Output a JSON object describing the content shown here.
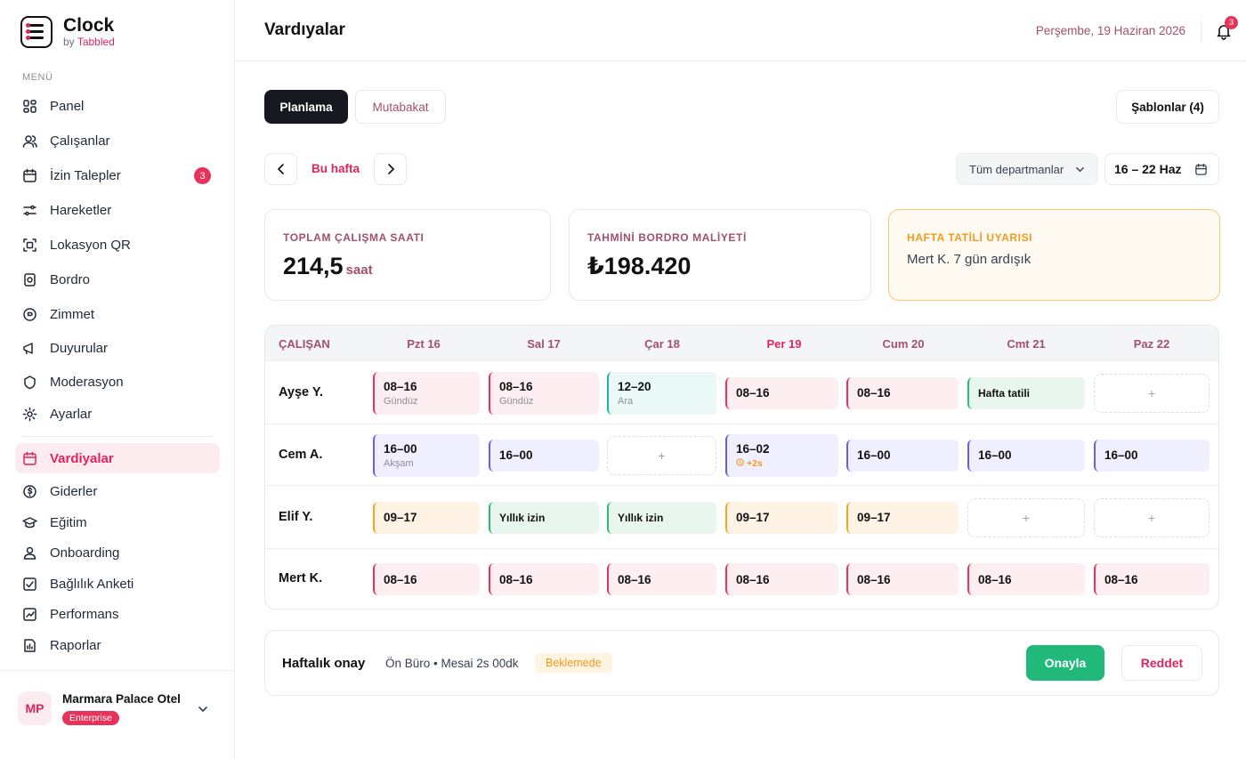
{
  "brand": {
    "name": "Clock",
    "by": "by",
    "maker": "Tabbled"
  },
  "sidebar": {
    "menu_label": "MENÜ",
    "items": [
      {
        "label": "Panel",
        "icon": "grid-icon"
      },
      {
        "label": "Çalışanlar",
        "icon": "users-icon"
      },
      {
        "label": "İzin Talepler",
        "icon": "calendar-icon",
        "badge": "3"
      },
      {
        "label": "Hareketler",
        "icon": "activity-icon"
      },
      {
        "label": "Lokasyon QR",
        "icon": "qr-icon"
      },
      {
        "label": "Bordro",
        "icon": "payroll-icon"
      },
      {
        "label": "Zimmet",
        "icon": "asset-icon"
      },
      {
        "label": "Duyurular",
        "icon": "megaphone-icon"
      },
      {
        "label": "Moderasyon",
        "icon": "moderation-icon"
      },
      {
        "label": "Ayarlar",
        "icon": "gear-icon"
      },
      {
        "label": "Vardiyalar",
        "icon": "calendar-icon",
        "active": true
      },
      {
        "label": "Giderler",
        "icon": "expense-icon"
      },
      {
        "label": "Eğitim",
        "icon": "graduation-icon"
      },
      {
        "label": "Onboarding",
        "icon": "user-icon"
      },
      {
        "label": "Bağlılık Anketi",
        "icon": "survey-icon"
      },
      {
        "label": "Performans",
        "icon": "chart-icon"
      },
      {
        "label": "Raporlar",
        "icon": "report-icon"
      }
    ],
    "org": {
      "initials": "MP",
      "name": "Marmara Palace Otel",
      "plan": "Enterprise"
    }
  },
  "header": {
    "title": "Vardıyalar",
    "date": "Perşembe, 19 Haziran 2026",
    "notifications": "3"
  },
  "tabs": {
    "planning": "Planlama",
    "reconciliation": "Mutabakat",
    "templates": "Şablonlar (4)"
  },
  "week": {
    "label": "Bu hafta",
    "department": "Tüm departmanlar",
    "range": "16 – 22 Haz"
  },
  "stats": {
    "hours_label": "TOPLAM ÇALIŞMA SAATI",
    "hours_value": "214,5",
    "hours_unit": "saat",
    "cost_label": "TAHMİNİ BORDRO MALİYETİ",
    "cost_value": "₺198.420",
    "warn_label": "HAFTA TATİLİ UYARISI",
    "warn_text": "Mert K. 7 gün ardışık"
  },
  "schedule": {
    "employee_header": "ÇALIŞAN",
    "days": [
      "Pzt 16",
      "Sal 17",
      "Çar 18",
      "Per 19",
      "Cum 20",
      "Cmt 21",
      "Paz 22"
    ],
    "rows": [
      {
        "name": "Ayşe Y.",
        "cells": [
          {
            "time": "08–16",
            "sub": "Gündüz",
            "color": "red"
          },
          {
            "time": "08–16",
            "sub": "Gündüz",
            "color": "red"
          },
          {
            "time": "12–20",
            "sub": "Ara",
            "color": "teal"
          },
          {
            "time": "08–16",
            "color": "red"
          },
          {
            "time": "08–16",
            "color": "red"
          },
          {
            "time": "Hafta tatili",
            "color": "green"
          },
          {
            "empty": "+"
          }
        ]
      },
      {
        "name": "Cem A.",
        "cells": [
          {
            "time": "16–00",
            "sub": "Akşam",
            "color": "purple"
          },
          {
            "time": "16–00",
            "color": "purple"
          },
          {
            "empty": "+"
          },
          {
            "time": "16–02",
            "overtime": "+2s",
            "color": "purple"
          },
          {
            "time": "16–00",
            "color": "purple"
          },
          {
            "time": "16–00",
            "color": "purple"
          },
          {
            "time": "16–00",
            "color": "purple"
          }
        ]
      },
      {
        "name": "Elif Y.",
        "cells": [
          {
            "time": "09–17",
            "color": "orange"
          },
          {
            "time": "Yıllık izin",
            "color": "green"
          },
          {
            "time": "Yıllık izin",
            "color": "green"
          },
          {
            "time": "09–17",
            "color": "orange"
          },
          {
            "time": "09–17",
            "color": "orange"
          },
          {
            "empty": "+"
          },
          {
            "empty": "+"
          }
        ]
      },
      {
        "name": "Mert K.",
        "cells": [
          {
            "time": "08–16",
            "color": "red"
          },
          {
            "time": "08–16",
            "color": "red"
          },
          {
            "time": "08–16",
            "color": "red"
          },
          {
            "time": "08–16",
            "color": "red"
          },
          {
            "time": "08–16",
            "color": "red"
          },
          {
            "time": "08–16",
            "color": "red"
          },
          {
            "time": "08–16",
            "color": "red"
          }
        ]
      }
    ]
  },
  "approval": {
    "title": "Haftalık onay",
    "info": "Ön Büro • Mesai 2s 00dk",
    "status": "Beklemede",
    "approve": "Onayla",
    "reject": "Reddet"
  },
  "colors": {
    "accent": "#e0245e",
    "muted": "#a3506a",
    "approve": "#20b97a",
    "warning": "#f29a1f"
  }
}
